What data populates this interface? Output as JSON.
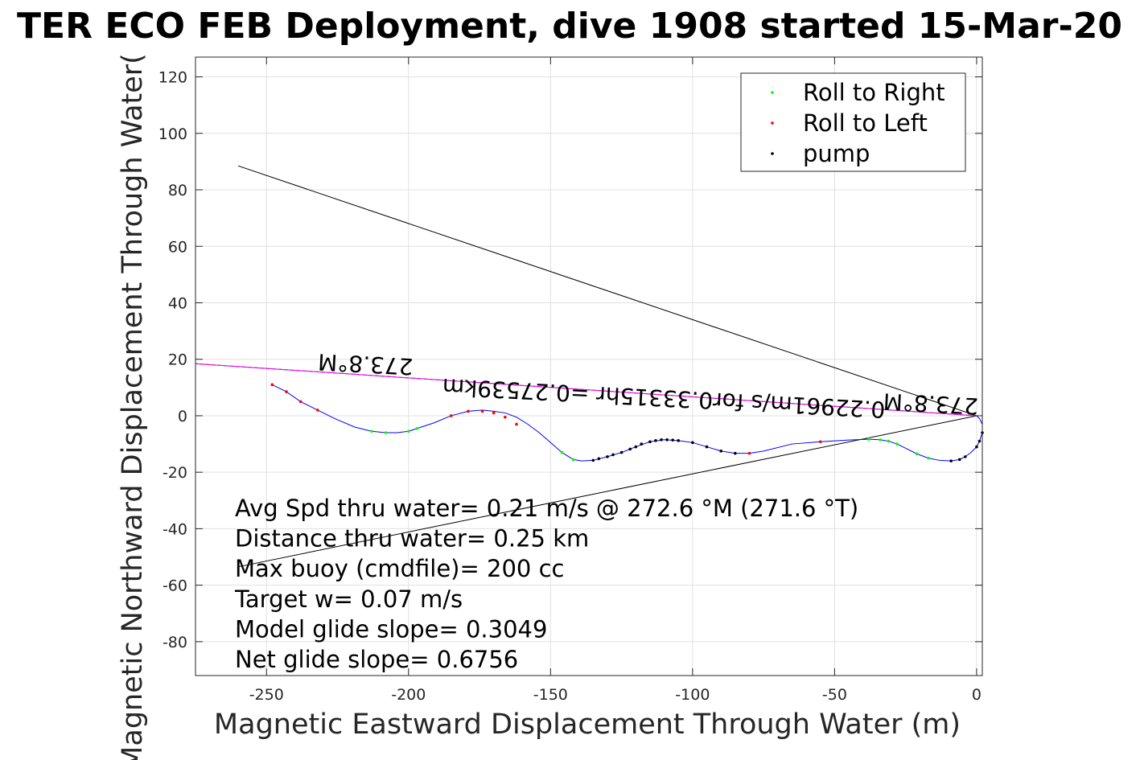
{
  "chart_data": {
    "type": "line",
    "title": "TER ECO FEB Deployment, dive 1908 started 15-Mar-20",
    "xlabel": "Magnetic Eastward Displacement Through Water (m)",
    "ylabel": "Magnetic Northward Displacement Through Water(",
    "xlim": [
      -275,
      2
    ],
    "ylim": [
      -92,
      127
    ],
    "xticks": [
      -250,
      -200,
      -150,
      -100,
      -50,
      0
    ],
    "yticks": [
      -80,
      -60,
      -40,
      -20,
      0,
      20,
      40,
      60,
      80,
      100,
      120
    ],
    "grid": true,
    "legend_position": "top-right",
    "legend": [
      {
        "label": "Roll to Right",
        "color": "#00ff00"
      },
      {
        "label": "Roll to Left",
        "color": "#ff0000"
      },
      {
        "label": "pump",
        "color": "#000000"
      }
    ],
    "track": {
      "color": "#0000ff",
      "x": [
        0,
        1,
        2,
        2,
        1,
        0,
        -2,
        -4,
        -6,
        -9,
        -13,
        -17,
        -21,
        -25,
        -28,
        -31,
        -34,
        -38,
        -45,
        -55,
        -65,
        -75,
        -80,
        -85,
        -90,
        -95,
        -100,
        -105,
        -110,
        -115,
        -120,
        -125,
        -130,
        -135,
        -139,
        -142,
        -146,
        -150,
        -154,
        -158,
        -162,
        -166,
        -170,
        -174,
        -179,
        -185,
        -191,
        -197,
        -200,
        -204,
        -208,
        -213,
        -219,
        -226,
        -232,
        -238,
        -243,
        -248
      ],
      "y": [
        0,
        -1,
        -3,
        -6,
        -9,
        -11,
        -13,
        -14.5,
        -15.5,
        -16,
        -15.8,
        -15,
        -13.5,
        -11.5,
        -10,
        -9,
        -8.5,
        -8.3,
        -8.6,
        -9.2,
        -10,
        -12.5,
        -13.3,
        -13.3,
        -12.5,
        -11,
        -9.5,
        -8.8,
        -8.5,
        -9.2,
        -11,
        -13,
        -14.5,
        -15.8,
        -16,
        -15.5,
        -13,
        -9.5,
        -6,
        -3,
        -0.5,
        1,
        1.6,
        2,
        1.6,
        0,
        -2.5,
        -4.5,
        -5.5,
        -6,
        -6,
        -5.5,
        -4,
        -1,
        2,
        5,
        8.5,
        11
      ]
    },
    "roll_right_points": {
      "color": "#00ff00",
      "x": [
        -28,
        -31,
        -34,
        -38,
        -17,
        -21,
        -142,
        -146,
        -208,
        -213,
        -200,
        -197
      ],
      "y": [
        -10,
        -9,
        -8.5,
        -8.3,
        -15,
        -13.5,
        -15.5,
        -13,
        -6,
        -5.5,
        -5.5,
        -4.5
      ]
    },
    "roll_left_points": {
      "color": "#ff0000",
      "x": [
        -248,
        -243,
        -238,
        -232,
        -174,
        -170,
        -166,
        -162,
        -185,
        -179,
        -80,
        -55
      ],
      "y": [
        11,
        8.5,
        5,
        2,
        1.6,
        1,
        -0.5,
        -3,
        0,
        1.6,
        -13.3,
        -9.2
      ]
    },
    "pump_points": {
      "color": "#000000",
      "x": [
        -90,
        -95,
        -100,
        -105,
        -107,
        -109,
        -111,
        -113,
        -115,
        -118,
        -120,
        -122,
        -125,
        -128,
        -130,
        -133,
        -135,
        -85,
        -4,
        -6,
        -9,
        0,
        1,
        2
      ],
      "y": [
        -12.5,
        -11,
        -9.5,
        -8.8,
        -8.6,
        -8.5,
        -8.5,
        -8.8,
        -9.2,
        -10,
        -11,
        -11.8,
        -13,
        -13.8,
        -14.5,
        -15.2,
        -15.8,
        -13.3,
        -14.5,
        -15.5,
        -16,
        -11,
        -9,
        -6
      ]
    },
    "reference_lines": [
      {
        "color": "#000000",
        "x": [
          -260,
          0
        ],
        "y": [
          88.5,
          0
        ]
      },
      {
        "color": "#000000",
        "x": [
          -260,
          0
        ],
        "y": [
          -53.5,
          0
        ]
      },
      {
        "color": "#000000",
        "x": [
          -276,
          0
        ],
        "y": [
          18.5,
          0
        ]
      },
      {
        "color": "#ff00ff",
        "x": [
          -276,
          0
        ],
        "y": [
          18.5,
          0
        ]
      }
    ],
    "annotations": [
      {
        "text": "273.8°M",
        "x": -215,
        "y": 21
      },
      {
        "text": "0.22961m/s for0.33315hr =0.27539km",
        "x": -110,
        "y": 9
      },
      {
        "text": "273.8°M",
        "x": -16,
        "y": 7
      }
    ],
    "stats": [
      "Avg Spd thru water=  0.21 m/s @ 272.6 °M (271.6 °T)",
      "Distance thru water=  0.25 km",
      "Max buoy (cmdfile)= 200 cc",
      "Target w= 0.07 m/s",
      "Model glide slope= 0.3049",
      "Net glide slope= 0.6756"
    ]
  }
}
